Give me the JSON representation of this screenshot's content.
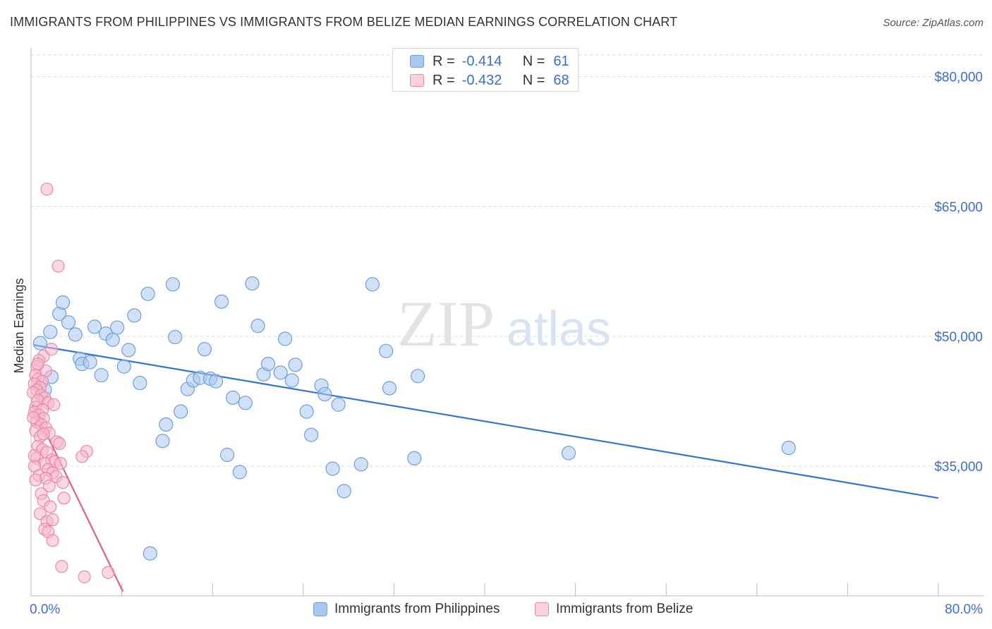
{
  "title": "IMMIGRANTS FROM PHILIPPINES VS IMMIGRANTS FROM BELIZE MEDIAN EARNINGS CORRELATION CHART",
  "source": "Source: ZipAtlas.com",
  "watermark": {
    "zip": "ZIP",
    "atlas": "atlas"
  },
  "colors": {
    "blue_fill": "#a9c8f0",
    "blue_stroke": "#6f9fd8",
    "blue_line": "#3474d0",
    "pink_fill": "#f5b8cc",
    "pink_stroke": "#e88aa8",
    "pink_line": "#e0608a",
    "axis_text": "#3b6fc9",
    "grid": "#dcdcdc"
  },
  "legend": {
    "rows": [
      {
        "r_label": "R =",
        "r_value": "-0.414",
        "n_label": "N =",
        "n_value": "61",
        "color": "blue"
      },
      {
        "r_label": "R =",
        "r_value": "-0.432",
        "n_label": "N =",
        "n_value": "68",
        "color": "pink"
      }
    ]
  },
  "bottom_legend": [
    "Immigrants from Philippines",
    "Immigrants from Belize"
  ],
  "chart_data": {
    "type": "scatter",
    "title": "IMMIGRANTS FROM PHILIPPINES VS IMMIGRANTS FROM BELIZE MEDIAN EARNINGS CORRELATION CHART",
    "xlabel": "",
    "ylabel": "Median Earnings",
    "xlim": [
      0,
      80
    ],
    "ylim": [
      20000,
      82500
    ],
    "x_tick_labels": [
      "0.0%",
      "80.0%"
    ],
    "y_ticks": [
      35000,
      50000,
      65000,
      80000
    ],
    "y_tick_labels": [
      "$35,000",
      "$50,000",
      "$65,000",
      "$80,000"
    ],
    "grid": true,
    "legend_position": "top-center",
    "series": [
      {
        "name": "Immigrants from Philippines",
        "color": "blue",
        "r": -0.414,
        "n": 61,
        "trend": {
          "x": [
            0.2,
            80
          ],
          "y": [
            49000,
            31300
          ]
        },
        "points": [
          [
            0.8,
            49200
          ],
          [
            1.2,
            43800
          ],
          [
            1.7,
            50500
          ],
          [
            1.8,
            45300
          ],
          [
            2.5,
            52600
          ],
          [
            2.8,
            53900
          ],
          [
            3.3,
            51600
          ],
          [
            3.9,
            50200
          ],
          [
            4.3,
            47400
          ],
          [
            4.5,
            46800
          ],
          [
            5.2,
            47000
          ],
          [
            5.6,
            51100
          ],
          [
            6.2,
            45500
          ],
          [
            6.6,
            50300
          ],
          [
            7.2,
            49600
          ],
          [
            7.6,
            51000
          ],
          [
            8.2,
            46500
          ],
          [
            8.6,
            48400
          ],
          [
            9.1,
            52400
          ],
          [
            9.6,
            44600
          ],
          [
            10.3,
            54900
          ],
          [
            11.6,
            37900
          ],
          [
            11.9,
            39800
          ],
          [
            12.5,
            56000
          ],
          [
            12.7,
            49900
          ],
          [
            13.2,
            41300
          ],
          [
            13.8,
            43900
          ],
          [
            14.3,
            44900
          ],
          [
            14.9,
            45200
          ],
          [
            15.3,
            48500
          ],
          [
            15.8,
            45100
          ],
          [
            16.3,
            44800
          ],
          [
            16.8,
            54000
          ],
          [
            17.3,
            36300
          ],
          [
            17.8,
            42900
          ],
          [
            18.4,
            34300
          ],
          [
            18.9,
            42300
          ],
          [
            19.5,
            56100
          ],
          [
            20.0,
            51200
          ],
          [
            20.5,
            45600
          ],
          [
            20.9,
            46800
          ],
          [
            22.0,
            45800
          ],
          [
            22.4,
            49700
          ],
          [
            23.0,
            44900
          ],
          [
            23.3,
            46700
          ],
          [
            24.3,
            41300
          ],
          [
            24.7,
            38600
          ],
          [
            25.6,
            44300
          ],
          [
            25.9,
            43300
          ],
          [
            26.6,
            34700
          ],
          [
            27.1,
            42100
          ],
          [
            27.6,
            32100
          ],
          [
            29.1,
            35200
          ],
          [
            30.1,
            56000
          ],
          [
            31.3,
            48300
          ],
          [
            31.6,
            44000
          ],
          [
            33.8,
            35900
          ],
          [
            34.1,
            45400
          ],
          [
            47.4,
            36500
          ],
          [
            66.8,
            37100
          ],
          [
            10.5,
            24900
          ]
        ]
      },
      {
        "name": "Immigrants from Belize",
        "color": "pink",
        "r": -0.432,
        "n": 68,
        "trend": {
          "x": [
            0.1,
            8.1
          ],
          "y": [
            42100,
            20500
          ]
        },
        "points": [
          [
            1.4,
            67000
          ],
          [
            2.4,
            58100
          ],
          [
            1.1,
            47700
          ],
          [
            0.7,
            47200
          ],
          [
            0.5,
            46500
          ],
          [
            1.3,
            46000
          ],
          [
            0.4,
            45500
          ],
          [
            0.6,
            45000
          ],
          [
            1.0,
            44800
          ],
          [
            0.3,
            44500
          ],
          [
            0.8,
            44100
          ],
          [
            0.5,
            43800
          ],
          [
            0.2,
            43500
          ],
          [
            0.9,
            43200
          ],
          [
            1.2,
            42900
          ],
          [
            0.6,
            42600
          ],
          [
            1.5,
            42300
          ],
          [
            2.0,
            42100
          ],
          [
            0.4,
            41800
          ],
          [
            1.0,
            41500
          ],
          [
            0.3,
            41200
          ],
          [
            0.7,
            40900
          ],
          [
            1.1,
            40500
          ],
          [
            0.5,
            40100
          ],
          [
            0.9,
            39800
          ],
          [
            1.3,
            39400
          ],
          [
            0.4,
            39100
          ],
          [
            1.6,
            38800
          ],
          [
            0.8,
            38400
          ],
          [
            2.3,
            37800
          ],
          [
            0.6,
            37300
          ],
          [
            1.0,
            36900
          ],
          [
            1.4,
            36600
          ],
          [
            4.9,
            36700
          ],
          [
            4.5,
            36100
          ],
          [
            0.5,
            35900
          ],
          [
            1.8,
            35700
          ],
          [
            2.1,
            35500
          ],
          [
            1.2,
            35300
          ],
          [
            0.3,
            35000
          ],
          [
            2.6,
            35300
          ],
          [
            1.5,
            34600
          ],
          [
            1.9,
            34200
          ],
          [
            0.7,
            33900
          ],
          [
            2.2,
            33800
          ],
          [
            1.3,
            33600
          ],
          [
            0.4,
            33400
          ],
          [
            2.8,
            33100
          ],
          [
            1.6,
            32700
          ],
          [
            0.9,
            31800
          ],
          [
            2.9,
            31300
          ],
          [
            1.1,
            31000
          ],
          [
            1.7,
            30300
          ],
          [
            0.8,
            29500
          ],
          [
            1.4,
            28600
          ],
          [
            1.9,
            28800
          ],
          [
            1.2,
            27700
          ],
          [
            1.5,
            27400
          ],
          [
            1.9,
            26400
          ],
          [
            2.7,
            23400
          ],
          [
            4.7,
            22200
          ],
          [
            6.8,
            22700
          ],
          [
            0.6,
            46800
          ],
          [
            1.8,
            48500
          ],
          [
            0.2,
            40600
          ],
          [
            2.5,
            37600
          ],
          [
            1.1,
            38700
          ],
          [
            0.3,
            36200
          ]
        ]
      }
    ]
  }
}
